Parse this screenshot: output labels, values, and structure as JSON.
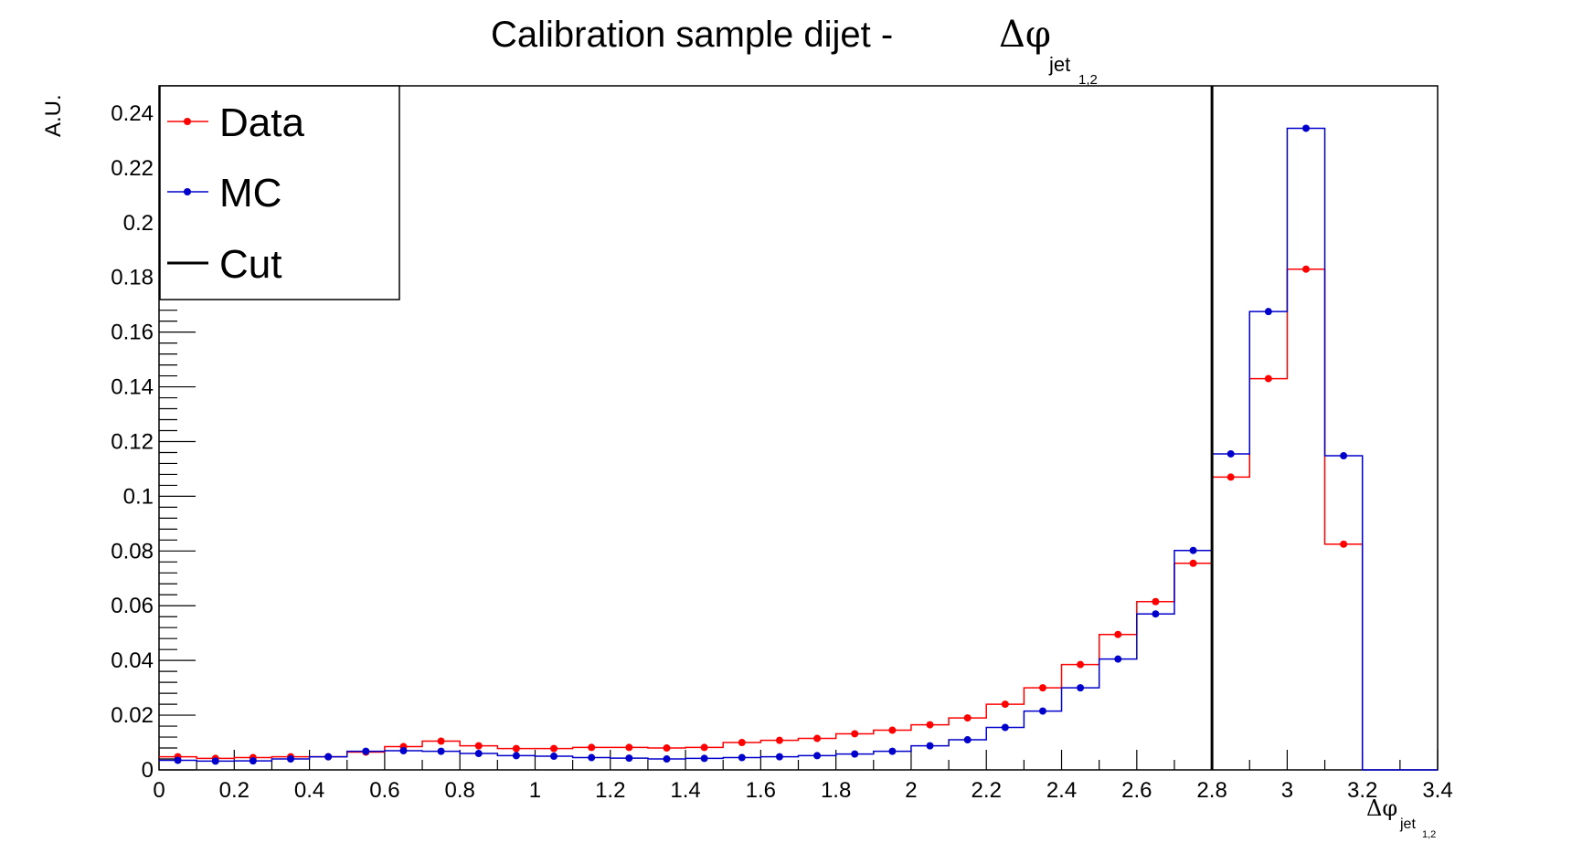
{
  "chart_data": {
    "type": "line",
    "title": "Calibration sample dijet -",
    "title_symbol": "Δφ",
    "title_subscript": "jet",
    "title_subsubscript": "1,2",
    "xlabel_symbol": "Δφ",
    "xlabel_subscript": "jet",
    "xlabel_subsubscript": "1,2",
    "ylabel": "A.U.",
    "xlim": [
      0,
      3.4
    ],
    "ylim": [
      0,
      0.25
    ],
    "x_ticks": [
      "0",
      "0.2",
      "0.4",
      "0.6",
      "0.8",
      "1",
      "1.2",
      "1.4",
      "1.6",
      "1.8",
      "2",
      "2.2",
      "2.4",
      "2.6",
      "2.8",
      "3",
      "3.2",
      "3.4"
    ],
    "y_ticks": [
      "0",
      "0.02",
      "0.04",
      "0.06",
      "0.08",
      "0.1",
      "0.12",
      "0.14",
      "0.16",
      "0.18",
      "0.2",
      "0.22",
      "0.24"
    ],
    "bin_edges": [
      0,
      0.1,
      0.2,
      0.3,
      0.4,
      0.5,
      0.6,
      0.7,
      0.8,
      0.9,
      1.0,
      1.1,
      1.2,
      1.3,
      1.4,
      1.5,
      1.6,
      1.7,
      1.8,
      1.9,
      2.0,
      2.1,
      2.2,
      2.3,
      2.4,
      2.5,
      2.6,
      2.7,
      2.8,
      2.9,
      3.0,
      3.1,
      3.2
    ],
    "cut_x": 2.8,
    "series": [
      {
        "name": "Data",
        "color": "#ff0000",
        "values": [
          0.0048,
          0.0042,
          0.0045,
          0.0048,
          0.0048,
          0.0065,
          0.0085,
          0.0105,
          0.0088,
          0.0078,
          0.0078,
          0.0082,
          0.0082,
          0.008,
          0.0082,
          0.01,
          0.0108,
          0.0115,
          0.0132,
          0.0145,
          0.0165,
          0.019,
          0.024,
          0.03,
          0.0385,
          0.0495,
          0.0615,
          0.0755,
          0.107,
          0.143,
          0.183,
          0.0825
        ]
      },
      {
        "name": "MC",
        "color": "#0000cc",
        "values": [
          0.0035,
          0.0032,
          0.0033,
          0.004,
          0.0048,
          0.0068,
          0.007,
          0.0068,
          0.006,
          0.0052,
          0.005,
          0.0045,
          0.0043,
          0.004,
          0.0042,
          0.0045,
          0.0048,
          0.0052,
          0.0058,
          0.0068,
          0.0088,
          0.011,
          0.0155,
          0.0215,
          0.03,
          0.0405,
          0.057,
          0.0802,
          0.1155,
          0.1675,
          0.2345,
          0.1148
        ]
      }
    ],
    "legend": {
      "position": "top-left",
      "entries": [
        {
          "label": "Data",
          "color": "#ff0000",
          "style": "marker"
        },
        {
          "label": "MC",
          "color": "#0000cc",
          "style": "marker"
        },
        {
          "label": "Cut",
          "color": "#000000",
          "style": "line"
        }
      ]
    }
  }
}
